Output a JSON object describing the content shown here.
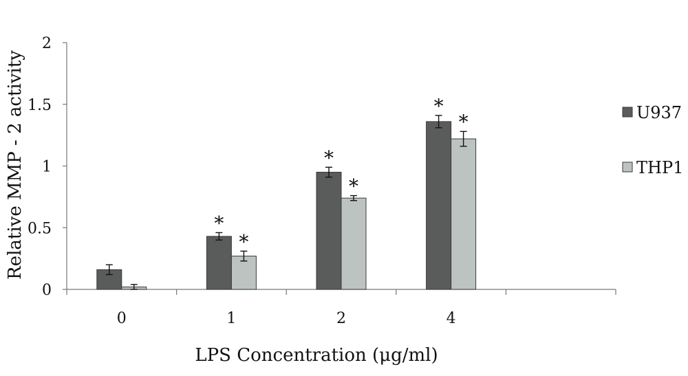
{
  "chart_data": {
    "type": "bar",
    "title": "",
    "xlabel": "LPS Concentration (μg/ml)",
    "ylabel": "Relative MMP - 2 activity",
    "categories": [
      "0",
      "1",
      "2",
      "4"
    ],
    "extra_empty_categories": 1,
    "ylim": [
      0,
      2
    ],
    "yticks": [
      0,
      0.5,
      1,
      1.5,
      2
    ],
    "ytick_labels": [
      "0",
      "0.5",
      "1",
      "1.5",
      "2"
    ],
    "grid": false,
    "legend_position": "right",
    "significance_marker": "*",
    "series": [
      {
        "name": "U937",
        "color": "#5a5c5c",
        "values": [
          0.16,
          0.43,
          0.95,
          1.36
        ],
        "errors": [
          0.04,
          0.03,
          0.04,
          0.05
        ],
        "significant": [
          false,
          true,
          true,
          true
        ]
      },
      {
        "name": "THP1",
        "color": "#bcc3c1",
        "values": [
          0.02,
          0.27,
          0.74,
          1.22
        ],
        "errors": [
          0.02,
          0.04,
          0.02,
          0.06
        ],
        "significant": [
          false,
          true,
          true,
          true
        ]
      }
    ]
  }
}
